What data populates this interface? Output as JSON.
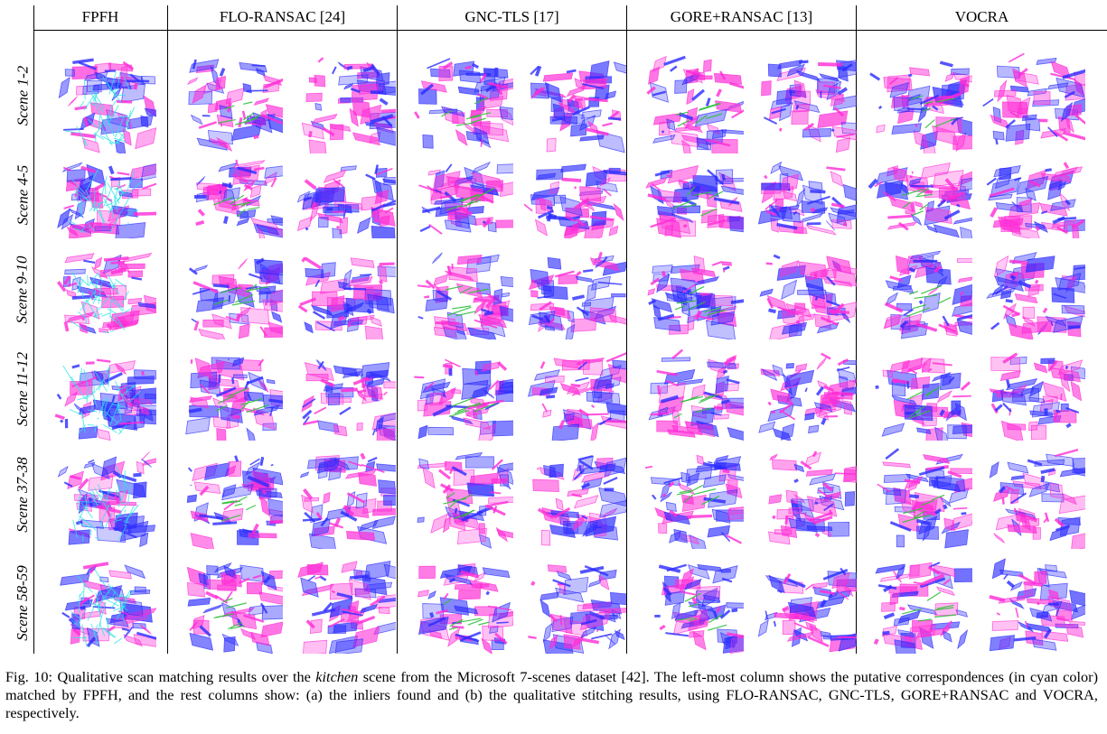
{
  "columns": [
    {
      "label": "FPFH",
      "panels": 1
    },
    {
      "label": "FLO-RANSAC [24]",
      "panels": 2
    },
    {
      "label": "GNC-TLS [17]",
      "panels": 2
    },
    {
      "label": "GORE+RANSAC [13]",
      "panels": 2
    },
    {
      "label": "VOCRA",
      "panels": 2
    }
  ],
  "rows": [
    {
      "label": "Scene 1-2"
    },
    {
      "label": "Scene 4-5"
    },
    {
      "label": "Scene 9-10"
    },
    {
      "label": "Scene 11-12"
    },
    {
      "label": "Scene 37-38"
    },
    {
      "label": "Scene 58-59"
    }
  ],
  "colors": {
    "source_cloud": "#2b2bff",
    "target_cloud": "#ff2bd6",
    "correspondence": "#28e6e6",
    "inlier": "#2fbf3a"
  },
  "caption": {
    "prefix": "Fig. 10: Qualitative scan matching results over the ",
    "emphasis": "kitchen",
    "suffix": " scene from the Microsoft 7-scenes dataset [42]. The left-most column shows the putative correspondences (in cyan color) matched by FPFH, and the rest columns show: (a) the inliers found and (b) the qualitative stitching results, using FLO-RANSAC, GNC-TLS, GORE+RANSAC and VOCRA, respectively."
  }
}
